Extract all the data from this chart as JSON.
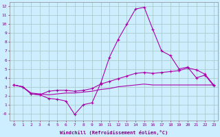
{
  "xlabel": "Windchill (Refroidissement éolien,°C)",
  "background_color": "#cceeff",
  "grid_color": "#aacccc",
  "line_color": "#aa00aa",
  "xlim": [
    -0.5,
    23.5
  ],
  "ylim": [
    -0.8,
    12.5
  ],
  "xticks": [
    0,
    1,
    2,
    3,
    4,
    5,
    6,
    7,
    8,
    9,
    10,
    11,
    12,
    13,
    14,
    15,
    16,
    17,
    18,
    19,
    20,
    21,
    22,
    23
  ],
  "yticks": [
    0,
    1,
    2,
    3,
    4,
    5,
    6,
    7,
    8,
    9,
    10,
    11,
    12
  ],
  "ytick_labels": [
    "-0",
    "1",
    "2",
    "3",
    "4",
    "5",
    "6",
    "7",
    "8",
    "9",
    "10",
    "11",
    "12"
  ],
  "line1_x": [
    0,
    1,
    2,
    3,
    4,
    5,
    6,
    7,
    8,
    9,
    10,
    11,
    12,
    13,
    14,
    15,
    16,
    17,
    18,
    19,
    20,
    21,
    22,
    23
  ],
  "line1_y": [
    3.2,
    3.0,
    2.2,
    2.1,
    1.7,
    1.6,
    1.4,
    -0.1,
    1.0,
    1.2,
    3.4,
    6.3,
    8.3,
    10.0,
    11.7,
    11.9,
    9.4,
    7.0,
    6.5,
    5.0,
    5.2,
    4.0,
    4.3,
    3.1
  ],
  "line2_x": [
    0,
    1,
    2,
    3,
    4,
    5,
    6,
    7,
    8,
    9,
    10,
    11,
    12,
    13,
    14,
    15,
    16,
    17,
    18,
    19,
    20,
    21,
    22,
    23
  ],
  "line2_y": [
    3.2,
    3.0,
    2.2,
    2.1,
    2.5,
    2.6,
    2.6,
    2.5,
    2.6,
    2.8,
    3.3,
    3.6,
    3.9,
    4.2,
    4.5,
    4.6,
    4.5,
    4.6,
    4.7,
    4.8,
    5.1,
    4.9,
    4.4,
    3.2
  ],
  "line3_x": [
    0,
    1,
    2,
    3,
    4,
    5,
    6,
    7,
    8,
    9,
    10,
    11,
    12,
    13,
    14,
    15,
    16,
    17,
    18,
    19,
    20,
    21,
    22,
    23
  ],
  "line3_y": [
    3.2,
    3.0,
    2.3,
    2.2,
    2.1,
    2.2,
    2.3,
    2.3,
    2.4,
    2.5,
    2.7,
    2.8,
    3.0,
    3.1,
    3.2,
    3.3,
    3.2,
    3.2,
    3.2,
    3.2,
    3.2,
    3.2,
    3.2,
    3.2
  ]
}
